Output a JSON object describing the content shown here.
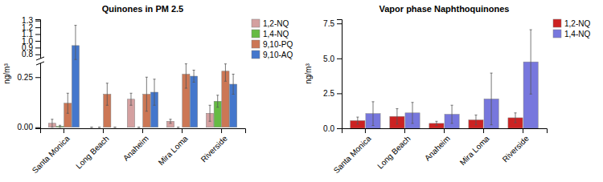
{
  "chart_data": [
    {
      "type": "bar",
      "title": "Quinones in PM 2.5",
      "ylabel": "ng/m³",
      "categories": [
        "Santa Monica",
        "Long Beach",
        "Anaheim",
        "Mira Loma",
        "Riverside"
      ],
      "series": [
        {
          "name": "1,2-NQ",
          "color": "#d4a0a0",
          "values": [
            0.02,
            0.0,
            0.14,
            0.03,
            0.07
          ],
          "errors": [
            0.02,
            0.0,
            0.03,
            0.01,
            0.04
          ]
        },
        {
          "name": "1,4-NQ",
          "color": "#66bb44",
          "values": [
            0.005,
            0.0,
            0.0,
            0.0,
            0.13
          ],
          "errors": [
            0.005,
            0.0,
            0.0,
            0.0,
            0.03
          ]
        },
        {
          "name": "9,10-PQ",
          "color": "#cc7755",
          "values": [
            0.12,
            0.165,
            0.165,
            0.265,
            0.28
          ],
          "errors": [
            0.05,
            0.055,
            0.085,
            0.07,
            0.05
          ]
        },
        {
          "name": "9,10-AQ",
          "color": "#4477cc",
          "values": [
            0.93,
            0.0,
            0.175,
            0.255,
            0.215
          ],
          "errors": [
            0.3,
            0.0,
            0.065,
            0.03,
            0.05
          ]
        }
      ],
      "ylim": [
        -0.005,
        1.32
      ],
      "y_break": [
        0.315,
        0.75
      ],
      "yticks": [
        {
          "value": 0,
          "label": "0.00"
        },
        0.25,
        0.8,
        0.9,
        {
          "value": 1.0,
          "label": "1.0"
        },
        1.1,
        1.2,
        1.3
      ],
      "grid": false,
      "legend": "upper right"
    },
    {
      "type": "bar",
      "title": "Vapor phase Naphthoquinones",
      "ylabel": "ng/m³",
      "categories": [
        "Santa Monica",
        "Long Beach",
        "Anaheim",
        "Mira Loma",
        "Riverside"
      ],
      "series": [
        {
          "name": "1,2-NQ",
          "color": "#cc2222",
          "values": [
            0.55,
            0.85,
            0.35,
            0.6,
            0.75
          ],
          "errors": [
            0.25,
            0.55,
            0.15,
            0.35,
            0.35
          ]
        },
        {
          "name": "1,4-NQ",
          "color": "#7777dd",
          "values": [
            1.05,
            1.1,
            1.0,
            2.1,
            4.75
          ],
          "errors": [
            0.85,
            0.75,
            0.65,
            1.85,
            2.3
          ]
        }
      ],
      "ylim": [
        0,
        7.8
      ],
      "yticks": [
        {
          "value": 0,
          "label": "0.0"
        },
        2.5,
        {
          "value": 5,
          "label": "5.0"
        },
        7.5
      ],
      "grid": false,
      "legend": "upper right"
    }
  ]
}
